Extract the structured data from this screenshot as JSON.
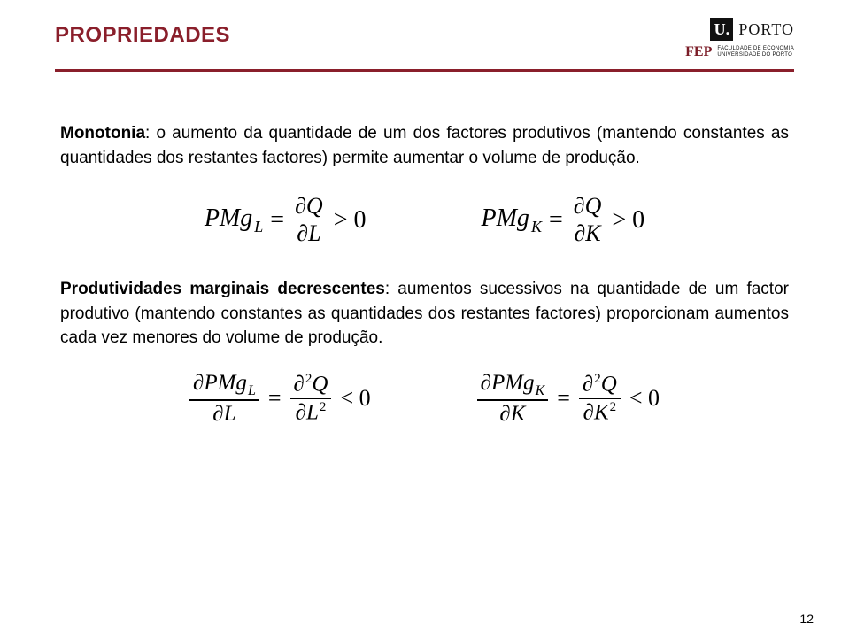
{
  "header": {
    "title": "PROPRIEDADES",
    "title_color": "#8a1f2b",
    "divider_color": "#8a1f2b",
    "logo": {
      "u": "U.",
      "porto": "PORTO",
      "fep": "FEP",
      "sub_line1": "FACULDADE DE ECONOMIA",
      "sub_line2": "UNIVERSIDADE DO PORTO",
      "fep_color": "#7b1c27"
    }
  },
  "para1": {
    "bold": "Monotonia",
    "rest": ": o aumento da quantidade de um dos factores produtivos (mantendo constantes as quantidades dos restantes factores) permite aumentar o volume de produção."
  },
  "formulas1": {
    "left": {
      "lhs": "PMg",
      "sub": "L",
      "num": "∂Q",
      "den": "∂L",
      "cmp": "> 0"
    },
    "right": {
      "lhs": "PMg",
      "sub": "K",
      "num": "∂Q",
      "den": "∂K",
      "cmp": "> 0"
    }
  },
  "para2": {
    "bold": "Produtividades marginais decrescentes",
    "rest": ": aumentos sucessivos na quantidade de um factor produtivo (mantendo constantes as quantidades dos restantes factores) proporcionam aumentos cada vez menores do volume de produção."
  },
  "formulas2": {
    "left": {
      "num": "∂PMg",
      "num_sub": "L",
      "den": "∂L",
      "r_num_pre": "∂",
      "r_num_sup": "2",
      "r_num_var": "Q",
      "r_den_pre": "∂L",
      "r_den_sup": "2",
      "cmp": "< 0"
    },
    "right": {
      "num": "∂PMg",
      "num_sub": "K",
      "den": "∂K",
      "r_num_pre": "∂",
      "r_num_sup": "2",
      "r_num_var": "Q",
      "r_den_pre": "∂K",
      "r_den_sup": "2",
      "cmp": "< 0"
    }
  },
  "page_number": "12",
  "colors": {
    "text": "#000000",
    "background": "#ffffff"
  }
}
